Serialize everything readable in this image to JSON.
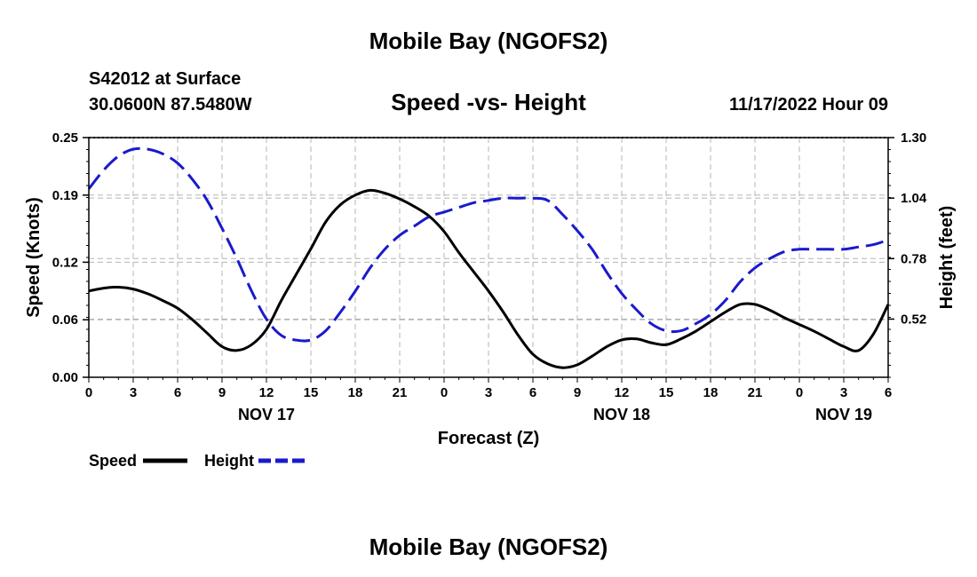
{
  "header": {
    "title": "Mobile Bay (NGOFS2)",
    "station": "S42012 at Surface",
    "coords": "30.0600N  87.5480W",
    "date": "11/17/2022 Hour 09"
  },
  "footer": {
    "title": "Mobile Bay (NGOFS2)"
  },
  "chart_data": {
    "type": "line",
    "title": "Speed -vs- Height",
    "xlabel": "Forecast (Z)",
    "ylabel": "Speed (Knots)",
    "y2label": "Height (feet)",
    "xlim": [
      0,
      54
    ],
    "ylim": [
      0,
      0.25
    ],
    "y2lim": [
      0.27,
      1.3
    ],
    "x_ticks": [
      0,
      3,
      6,
      9,
      12,
      15,
      18,
      21,
      24,
      27,
      30,
      33,
      36,
      39,
      42,
      45,
      48,
      51,
      54
    ],
    "x_tick_labels": [
      "0",
      "3",
      "6",
      "9",
      "12",
      "15",
      "18",
      "21",
      "0",
      "3",
      "6",
      "9",
      "12",
      "15",
      "18",
      "21",
      "0",
      "3",
      "6"
    ],
    "y_ticks": [
      0.0,
      0.06,
      0.12,
      0.19,
      0.25
    ],
    "y_tick_labels": [
      "0.00",
      "0.06",
      "0.12",
      "0.19",
      "0.25"
    ],
    "y2_ticks": [
      0.52,
      0.78,
      1.04,
      1.3
    ],
    "y2_tick_labels": [
      "0.52",
      "0.78",
      "1.04",
      "1.30"
    ],
    "day_labels": [
      {
        "x": 12,
        "label": "NOV 17"
      },
      {
        "x": 36,
        "label": "NOV 18"
      },
      {
        "x": 51,
        "label": "NOV 19"
      }
    ],
    "legend": {
      "position": "bottom-left"
    },
    "series": [
      {
        "name": "Speed",
        "axis": "left",
        "color": "#000000",
        "style": "solid",
        "x": [
          0,
          1,
          2,
          3,
          4,
          5,
          6,
          7,
          8,
          9,
          10,
          11,
          12,
          13,
          14,
          15,
          16,
          17,
          18,
          19,
          20,
          21,
          22,
          23,
          24,
          25,
          26,
          27,
          28,
          29,
          30,
          31,
          32,
          33,
          34,
          35,
          36,
          37,
          38,
          39,
          40,
          41,
          42,
          43,
          44,
          45,
          46,
          47,
          48,
          49,
          50,
          51,
          52,
          53,
          54
        ],
        "values": [
          0.09,
          0.093,
          0.094,
          0.092,
          0.087,
          0.08,
          0.072,
          0.06,
          0.046,
          0.032,
          0.028,
          0.034,
          0.05,
          0.08,
          0.107,
          0.134,
          0.162,
          0.18,
          0.19,
          0.195,
          0.192,
          0.186,
          0.178,
          0.168,
          0.152,
          0.13,
          0.11,
          0.09,
          0.068,
          0.044,
          0.024,
          0.014,
          0.01,
          0.013,
          0.022,
          0.032,
          0.039,
          0.04,
          0.036,
          0.034,
          0.04,
          0.048,
          0.058,
          0.068,
          0.076,
          0.076,
          0.07,
          0.062,
          0.055,
          0.048,
          0.04,
          0.032,
          0.028,
          0.045,
          0.076
        ]
      },
      {
        "name": "Height",
        "axis": "right",
        "color": "#1a1aCC",
        "style": "dashed",
        "x": [
          0,
          1,
          2,
          3,
          4,
          5,
          6,
          7,
          8,
          9,
          10,
          11,
          12,
          13,
          14,
          15,
          16,
          17,
          18,
          19,
          20,
          21,
          22,
          23,
          24,
          25,
          26,
          27,
          28,
          29,
          30,
          31,
          32,
          33,
          34,
          35,
          36,
          37,
          38,
          39,
          40,
          41,
          42,
          43,
          44,
          45,
          46,
          47,
          48,
          49,
          50,
          51,
          52,
          53,
          54
        ],
        "values": [
          1.08,
          1.16,
          1.22,
          1.25,
          1.25,
          1.23,
          1.19,
          1.12,
          1.03,
          0.91,
          0.78,
          0.64,
          0.52,
          0.45,
          0.43,
          0.43,
          0.47,
          0.55,
          0.64,
          0.74,
          0.82,
          0.88,
          0.92,
          0.96,
          0.98,
          1.0,
          1.02,
          1.03,
          1.04,
          1.04,
          1.04,
          1.03,
          0.97,
          0.9,
          0.82,
          0.72,
          0.63,
          0.56,
          0.5,
          0.47,
          0.47,
          0.5,
          0.54,
          0.6,
          0.68,
          0.74,
          0.78,
          0.81,
          0.82,
          0.82,
          0.82,
          0.82,
          0.83,
          0.84,
          0.86
        ]
      }
    ]
  }
}
